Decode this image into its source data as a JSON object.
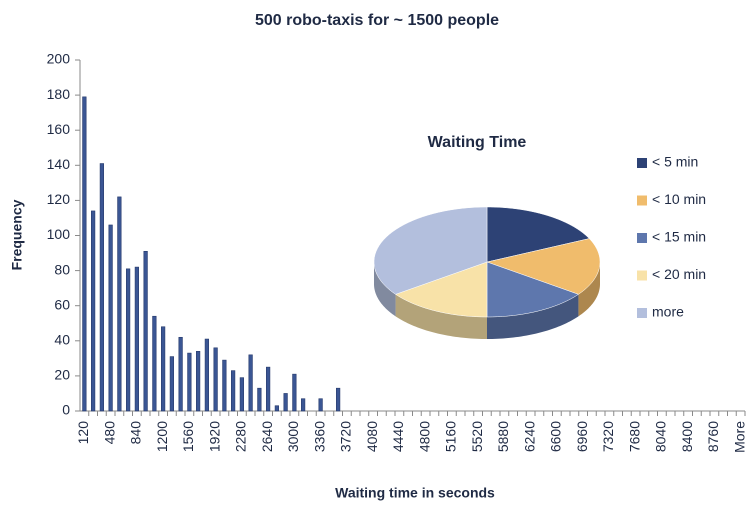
{
  "chart_data": [
    {
      "type": "bar",
      "title": "500 robo-taxis for ~ 1500 people",
      "x_label": "Waiting time in seconds",
      "y_label": "Frequency",
      "categories": [
        "120",
        null,
        null,
        "480",
        null,
        null,
        "840",
        null,
        null,
        "1200",
        null,
        null,
        "1560",
        null,
        null,
        "1920",
        null,
        null,
        "2280",
        null,
        null,
        "2640",
        null,
        null,
        "3000",
        null,
        null,
        "3360",
        null,
        null,
        "3720",
        null,
        null,
        "4080",
        null,
        null,
        "4440",
        null,
        null,
        "4800",
        null,
        null,
        "5160",
        null,
        null,
        "5520",
        null,
        null,
        "5880",
        null,
        null,
        "6240",
        null,
        null,
        "6600",
        null,
        null,
        "6960",
        null,
        null,
        "7320",
        null,
        null,
        "7680",
        null,
        null,
        "8040",
        null,
        null,
        "8400",
        null,
        null,
        "8760",
        null,
        null,
        "More"
      ],
      "values": [
        179,
        114,
        141,
        106,
        122,
        81,
        82,
        91,
        54,
        48,
        31,
        42,
        33,
        34,
        41,
        36,
        29,
        23,
        19,
        32,
        13,
        25,
        3,
        10,
        21,
        7,
        0,
        7,
        0,
        13,
        0,
        0,
        0,
        0,
        0,
        0,
        0,
        0,
        0,
        0,
        0,
        0,
        0,
        0,
        0,
        0,
        0,
        0,
        0,
        0,
        0,
        0,
        0,
        0,
        0,
        0,
        0,
        0,
        0,
        0,
        0,
        0,
        0,
        0,
        0,
        0,
        0,
        0,
        0,
        0,
        0,
        0,
        0,
        0,
        0,
        0
      ],
      "color": "#3b5694",
      "ylim": [
        0,
        200
      ],
      "yticks": [
        0,
        20,
        40,
        60,
        80,
        100,
        120,
        140,
        160,
        180,
        200
      ],
      "grid": false
    },
    {
      "type": "pie",
      "title": "Waiting Time",
      "categories": [
        "< 5 min",
        "< 10 min",
        "< 15 min",
        "< 20 min",
        "more"
      ],
      "values": [
        18,
        17,
        15,
        15,
        35
      ],
      "colors": [
        "#2d4275",
        "#f0bc6c",
        "#5e77ad",
        "#f8e2a8",
        "#b3bfdd"
      ],
      "legend": "right"
    }
  ]
}
